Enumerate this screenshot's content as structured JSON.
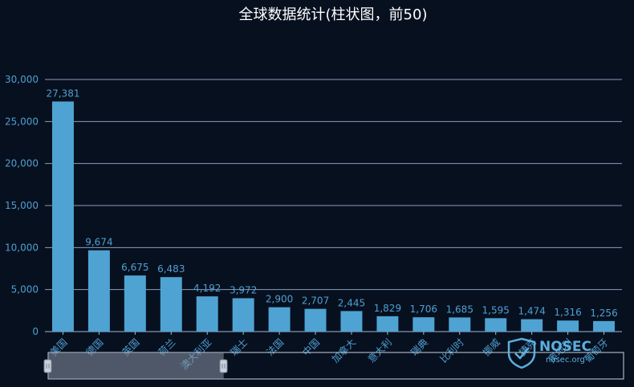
{
  "colors": {
    "background": "#07101f",
    "bar": "#4fa3d3",
    "label": "#4f9fd1",
    "title": "#ffffff"
  },
  "watermark": {
    "brand": "NOSEC",
    "domain": "nosec.org",
    "icon": "shield-icon"
  },
  "datazoom": {
    "start": 0,
    "end": 0.305
  },
  "chart_data": {
    "type": "bar",
    "title": "全球数据统计(柱状图，前50)",
    "xlabel": "",
    "ylabel": "",
    "ylim": [
      0,
      30000
    ],
    "yticks": [
      "0",
      "5,000",
      "10,000",
      "15,000",
      "20,000",
      "25,000",
      "30,000"
    ],
    "ytick_values": [
      0,
      5000,
      10000,
      15000,
      20000,
      25000,
      30000
    ],
    "grid": true,
    "categories": [
      "美国",
      "德国",
      "英国",
      "荷兰",
      "澳大利亚",
      "瑞士",
      "法国",
      "中国",
      "加拿大",
      "意大利",
      "瑞典",
      "比利时",
      "挪威",
      "捷克",
      "奥地利",
      "葡萄牙"
    ],
    "values": [
      27381,
      9674,
      6675,
      6483,
      4192,
      3972,
      2900,
      2707,
      2445,
      1829,
      1706,
      1685,
      1595,
      1474,
      1316,
      1256
    ],
    "value_labels": [
      "27,381",
      "9,674",
      "6,675",
      "6,483",
      "4,192",
      "3,972",
      "2,900",
      "2,707",
      "2,445",
      "1,829",
      "1,706",
      "1,685",
      "1,595",
      "1,474",
      "1,316",
      "1,256"
    ]
  }
}
